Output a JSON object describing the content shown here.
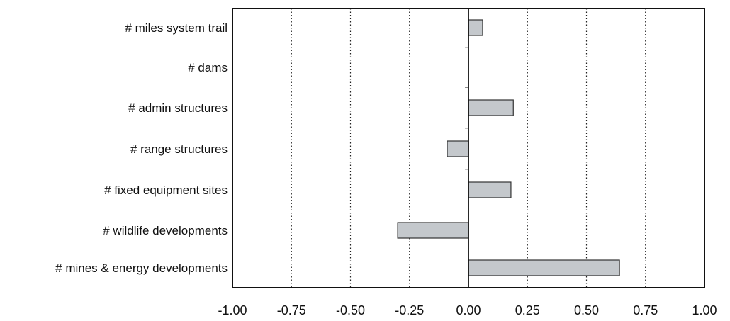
{
  "chart_data": {
    "type": "bar",
    "orientation": "horizontal",
    "categories": [
      "# miles system trail",
      "# dams",
      "# admin structures",
      "# range structures",
      "# fixed equipment sites",
      "# wildlife developments",
      "# mines & energy developments"
    ],
    "values": [
      0.06,
      0.0,
      0.19,
      -0.09,
      0.18,
      -0.3,
      0.64
    ],
    "xlim": [
      -1.0,
      1.0
    ],
    "xticks": [
      -1.0,
      -0.75,
      -0.5,
      -0.25,
      0.0,
      0.25,
      0.5,
      0.75,
      1.0
    ],
    "xtick_labels": [
      "-1.00",
      "-0.75",
      "-0.50",
      "-0.25",
      "0.00",
      "0.25",
      "0.50",
      "0.75",
      "1.00"
    ],
    "title": "",
    "xlabel": "",
    "ylabel": "",
    "grid": "vertical dotted lines at ticks",
    "colors": {
      "bar_fill": "#c4c8cc",
      "bar_stroke": "#333333",
      "axis": "#111111",
      "grid": "#222222"
    }
  }
}
